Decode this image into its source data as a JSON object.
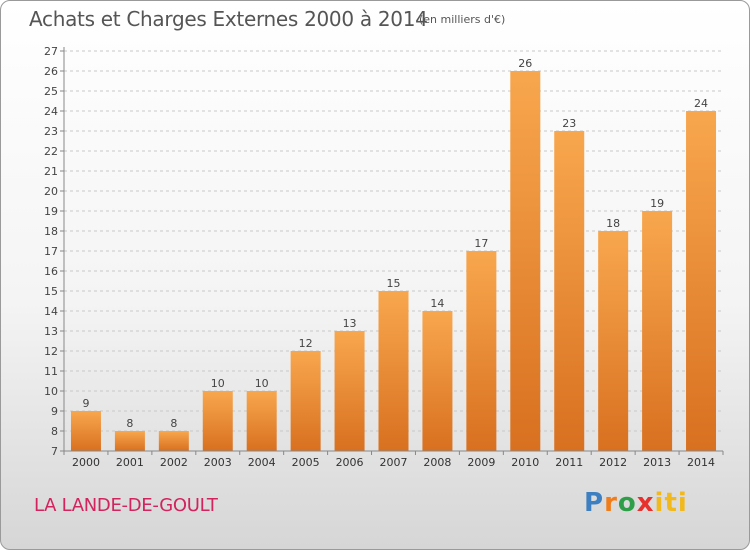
{
  "title": "Achats et Charges Externes 2000 à 2014",
  "unit_note": "(en milliers d'€)",
  "commune": "LA LANDE-DE-GOULT",
  "logo": {
    "parts": [
      "P",
      "r",
      "o",
      "x",
      "iti"
    ]
  },
  "colors": {
    "bar_top": "#f8a74e",
    "bar_bottom": "#d87020",
    "grid": "#c8c8c8",
    "commune": "#d2235f"
  },
  "chart_data": {
    "type": "bar",
    "title": "Achats et Charges Externes 2000 à 2014",
    "subtitle": "(en milliers d'€)",
    "categories": [
      "2000",
      "2001",
      "2002",
      "2003",
      "2004",
      "2005",
      "2006",
      "2007",
      "2008",
      "2009",
      "2010",
      "2011",
      "2012",
      "2013",
      "2014"
    ],
    "values": [
      9,
      8,
      8,
      10,
      10,
      12,
      13,
      15,
      14,
      17,
      26,
      23,
      18,
      19,
      24
    ],
    "ylim": [
      7,
      27
    ],
    "yticks": [
      7,
      8,
      9,
      10,
      11,
      12,
      13,
      14,
      15,
      16,
      17,
      18,
      19,
      20,
      21,
      22,
      23,
      24,
      25,
      26,
      27
    ],
    "grid": "horizontal dashed",
    "xlabel": "",
    "ylabel": ""
  }
}
